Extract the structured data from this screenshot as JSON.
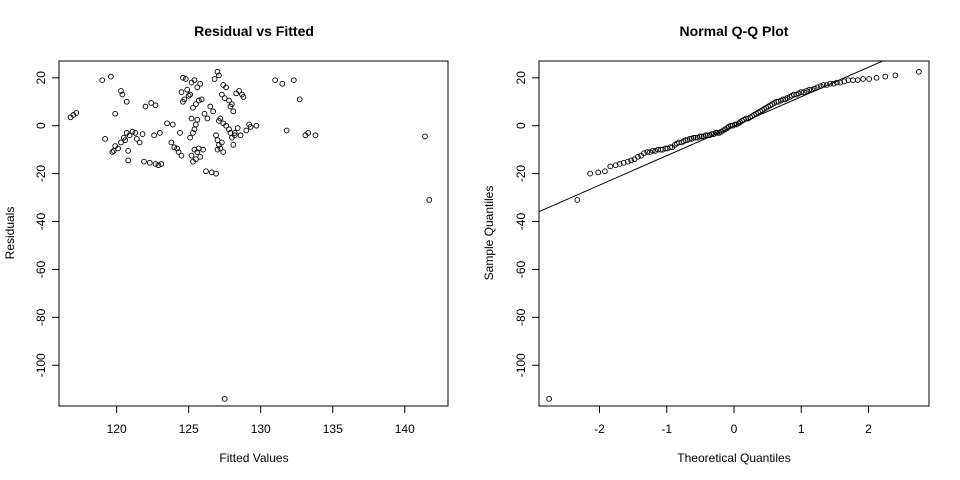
{
  "chart_data": [
    {
      "type": "scatter",
      "title": "Residual vs Fitted",
      "xlabel": "Fitted Values",
      "ylabel": "Residuals",
      "xlim": [
        116,
        143
      ],
      "ylim": [
        -117,
        27
      ],
      "xticks": [
        120,
        125,
        130,
        135,
        140
      ],
      "yticks": [
        -100,
        -80,
        -60,
        -40,
        -20,
        0,
        20
      ],
      "grid": false,
      "points": [
        [
          116.8,
          3.5
        ],
        [
          117.0,
          4.5
        ],
        [
          117.2,
          5.3
        ],
        [
          119.0,
          19
        ],
        [
          119.6,
          20.5
        ],
        [
          119.9,
          5
        ],
        [
          119.2,
          -5.5
        ],
        [
          119.7,
          -11
        ],
        [
          119.9,
          -8.5
        ],
        [
          120.1,
          -9.5
        ],
        [
          119.8,
          -10.5
        ],
        [
          120.3,
          14.5
        ],
        [
          120.4,
          13
        ],
        [
          120.5,
          -5
        ],
        [
          120.6,
          -6
        ],
        [
          120.3,
          -7
        ],
        [
          120.7,
          -3
        ],
        [
          120.9,
          -4
        ],
        [
          120.7,
          10
        ],
        [
          120.8,
          -10.5
        ],
        [
          120.8,
          -14.5
        ],
        [
          121.1,
          -2.5
        ],
        [
          121.3,
          -3
        ],
        [
          121.4,
          -5.5
        ],
        [
          121.6,
          -7
        ],
        [
          121.8,
          -3.5
        ],
        [
          121.9,
          -15
        ],
        [
          122.0,
          8
        ],
        [
          122.3,
          -15.5
        ],
        [
          122.4,
          9.5
        ],
        [
          122.6,
          -4
        ],
        [
          122.7,
          -16
        ],
        [
          122.9,
          -16.5
        ],
        [
          123.1,
          -16
        ],
        [
          123.0,
          -3
        ],
        [
          122.7,
          8.5
        ],
        [
          123.5,
          1
        ],
        [
          123.8,
          -7
        ],
        [
          123.9,
          0.5
        ],
        [
          124.0,
          -9
        ],
        [
          124.2,
          -9.5
        ],
        [
          124.3,
          -11
        ],
        [
          124.5,
          -12.5
        ],
        [
          124.4,
          -3
        ],
        [
          124.6,
          10
        ],
        [
          124.7,
          11
        ],
        [
          124.5,
          14
        ],
        [
          124.8,
          19.5
        ],
        [
          124.6,
          20
        ],
        [
          124.9,
          15
        ],
        [
          125.0,
          12.5
        ],
        [
          125.1,
          13
        ],
        [
          125.2,
          18
        ],
        [
          125.3,
          -15
        ],
        [
          125.5,
          -14
        ],
        [
          125.2,
          -12.5
        ],
        [
          125.4,
          -10
        ],
        [
          125.6,
          -11
        ],
        [
          125.7,
          -9.5
        ],
        [
          125.8,
          -13
        ],
        [
          125.1,
          -5
        ],
        [
          125.3,
          -3
        ],
        [
          125.4,
          -1.5
        ],
        [
          125.5,
          0.5
        ],
        [
          125.2,
          3
        ],
        [
          125.6,
          2.5
        ],
        [
          125.3,
          7.5
        ],
        [
          125.5,
          9
        ],
        [
          125.7,
          10.5
        ],
        [
          125.9,
          11
        ],
        [
          125.6,
          16
        ],
        [
          125.8,
          17.5
        ],
        [
          125.4,
          19
        ],
        [
          126.0,
          -10
        ],
        [
          126.2,
          -19
        ],
        [
          126.6,
          -19.5
        ],
        [
          126.9,
          -20
        ],
        [
          126.1,
          5
        ],
        [
          126.3,
          3
        ],
        [
          126.5,
          8
        ],
        [
          126.7,
          6
        ],
        [
          126.9,
          -4
        ],
        [
          127.0,
          -6
        ],
        [
          127.1,
          -8
        ],
        [
          127.2,
          -9.5
        ],
        [
          127.0,
          -10
        ],
        [
          127.3,
          -7
        ],
        [
          127.4,
          -11
        ],
        [
          127.2,
          3
        ],
        [
          127.4,
          1
        ],
        [
          127.1,
          2
        ],
        [
          127.6,
          0
        ],
        [
          127.8,
          -1.5
        ],
        [
          127.9,
          -3
        ],
        [
          128.0,
          -5
        ],
        [
          128.1,
          -8
        ],
        [
          128.2,
          -4
        ],
        [
          127.5,
          11.5
        ],
        [
          127.3,
          13
        ],
        [
          127.6,
          16
        ],
        [
          127.4,
          17
        ],
        [
          127.1,
          21
        ],
        [
          127.8,
          10.5
        ],
        [
          128.0,
          9
        ],
        [
          127.9,
          8
        ],
        [
          128.1,
          6
        ],
        [
          128.2,
          -3
        ],
        [
          128.4,
          -1
        ],
        [
          128.6,
          -4
        ],
        [
          128.3,
          13.5
        ],
        [
          128.5,
          14.5
        ],
        [
          128.7,
          13
        ],
        [
          128.8,
          12
        ],
        [
          129.0,
          -2
        ],
        [
          129.3,
          -0.5
        ],
        [
          129.2,
          0.5
        ],
        [
          129.7,
          0
        ],
        [
          127.0,
          22.5
        ],
        [
          126.8,
          19.5
        ],
        [
          127.5,
          -114
        ],
        [
          131.0,
          19
        ],
        [
          131.5,
          17.5
        ],
        [
          131.8,
          -2
        ],
        [
          132.3,
          19
        ],
        [
          132.7,
          11
        ],
        [
          133.1,
          -4
        ],
        [
          133.3,
          -3
        ],
        [
          133.8,
          -4
        ],
        [
          141.4,
          -4.5
        ],
        [
          141.7,
          -31
        ]
      ]
    },
    {
      "type": "scatter",
      "title": "Normal Q-Q Plot",
      "xlabel": "Theoretical Quantiles",
      "ylabel": "Sample Quantiles",
      "xlim": [
        -2.9,
        2.9
      ],
      "ylim": [
        -117,
        27
      ],
      "xticks": [
        -2,
        -1,
        0,
        1,
        2
      ],
      "yticks": [
        -100,
        -80,
        -60,
        -40,
        -20,
        0,
        20
      ],
      "grid": false,
      "reference_line": {
        "intercept": -0.2,
        "slope": 12.3
      },
      "points": [
        [
          -2.75,
          -114
        ],
        [
          -2.33,
          -31
        ],
        [
          -2.14,
          -20
        ],
        [
          -2.02,
          -19.5
        ],
        [
          -1.92,
          -19
        ],
        [
          -1.84,
          -17
        ],
        [
          -1.76,
          -16.5
        ],
        [
          -1.7,
          -16
        ],
        [
          -1.64,
          -15.5
        ],
        [
          -1.58,
          -15
        ],
        [
          -1.53,
          -14.5
        ],
        [
          -1.48,
          -14
        ],
        [
          -1.43,
          -13
        ],
        [
          -1.38,
          -12.5
        ],
        [
          -1.34,
          -11.5
        ],
        [
          -1.29,
          -11
        ],
        [
          -1.25,
          -11
        ],
        [
          -1.21,
          -10.5
        ],
        [
          -1.17,
          -10.5
        ],
        [
          -1.13,
          -10
        ],
        [
          -1.09,
          -10
        ],
        [
          -1.06,
          -10
        ],
        [
          -1.02,
          -9.5
        ],
        [
          -0.99,
          -9.5
        ],
        [
          -0.95,
          -9
        ],
        [
          -0.92,
          -9
        ],
        [
          -0.88,
          -8
        ],
        [
          -0.85,
          -7.5
        ],
        [
          -0.82,
          -7
        ],
        [
          -0.78,
          -7
        ],
        [
          -0.75,
          -6.5
        ],
        [
          -0.72,
          -6
        ],
        [
          -0.69,
          -6
        ],
        [
          -0.66,
          -5.5
        ],
        [
          -0.63,
          -5.5
        ],
        [
          -0.6,
          -5
        ],
        [
          -0.57,
          -5
        ],
        [
          -0.54,
          -5
        ],
        [
          -0.51,
          -4.5
        ],
        [
          -0.48,
          -4.5
        ],
        [
          -0.45,
          -4.5
        ],
        [
          -0.42,
          -4
        ],
        [
          -0.39,
          -4
        ],
        [
          -0.36,
          -4
        ],
        [
          -0.33,
          -3.5
        ],
        [
          -0.3,
          -3.5
        ],
        [
          -0.27,
          -3
        ],
        [
          -0.25,
          -3
        ],
        [
          -0.22,
          -3
        ],
        [
          -0.19,
          -2.5
        ],
        [
          -0.16,
          -2
        ],
        [
          -0.13,
          -1.5
        ],
        [
          -0.1,
          -1
        ],
        [
          -0.08,
          -0.5
        ],
        [
          -0.05,
          0
        ],
        [
          -0.02,
          0
        ],
        [
          0.01,
          0.5
        ],
        [
          0.04,
          0.5
        ],
        [
          0.07,
          1
        ],
        [
          0.09,
          1.5
        ],
        [
          0.12,
          2
        ],
        [
          0.15,
          2.5
        ],
        [
          0.18,
          3
        ],
        [
          0.21,
          3
        ],
        [
          0.24,
          3.5
        ],
        [
          0.27,
          4
        ],
        [
          0.3,
          4.5
        ],
        [
          0.33,
          5
        ],
        [
          0.36,
          5.5
        ],
        [
          0.39,
          6
        ],
        [
          0.42,
          6.5
        ],
        [
          0.45,
          7
        ],
        [
          0.48,
          7.5
        ],
        [
          0.51,
          8
        ],
        [
          0.54,
          8.5
        ],
        [
          0.57,
          9
        ],
        [
          0.6,
          9.5
        ],
        [
          0.63,
          10
        ],
        [
          0.66,
          10
        ],
        [
          0.7,
          10.5
        ],
        [
          0.73,
          11
        ],
        [
          0.76,
          11
        ],
        [
          0.79,
          11.5
        ],
        [
          0.83,
          12
        ],
        [
          0.86,
          12.5
        ],
        [
          0.89,
          13
        ],
        [
          0.93,
          13
        ],
        [
          0.96,
          13.5
        ],
        [
          1.0,
          14
        ],
        [
          1.04,
          14
        ],
        [
          1.08,
          14.5
        ],
        [
          1.12,
          15
        ],
        [
          1.16,
          15
        ],
        [
          1.2,
          15.5
        ],
        [
          1.24,
          16
        ],
        [
          1.29,
          16.5
        ],
        [
          1.33,
          17
        ],
        [
          1.38,
          17
        ],
        [
          1.43,
          17.5
        ],
        [
          1.48,
          17.5
        ],
        [
          1.53,
          18
        ],
        [
          1.58,
          18
        ],
        [
          1.64,
          18.5
        ],
        [
          1.7,
          19
        ],
        [
          1.77,
          19
        ],
        [
          1.84,
          19
        ],
        [
          1.92,
          19.5
        ],
        [
          2.01,
          19.5
        ],
        [
          2.12,
          20
        ],
        [
          2.25,
          20.5
        ],
        [
          2.4,
          21
        ],
        [
          2.75,
          22.5
        ]
      ]
    }
  ]
}
